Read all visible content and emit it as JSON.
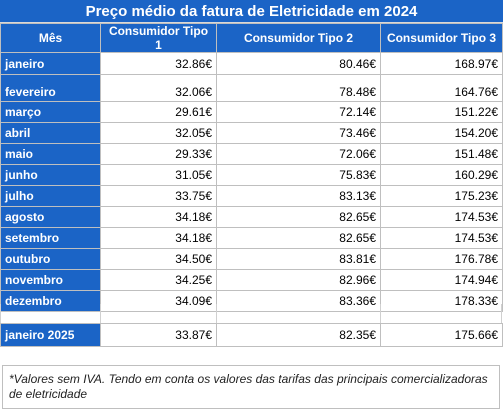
{
  "title": "Preço médio da fatura de Eletricidade em 2024",
  "headers": {
    "month": "Mês",
    "c1": "Consumidor Tipo 1",
    "c2": "Consumidor Tipo 2",
    "c3": "Consumidor Tipo 3"
  },
  "rows": [
    {
      "month": "janeiro",
      "c1": "32.86€",
      "c2": "80.46€",
      "c3": "168.97€"
    },
    {
      "month": "fevereiro",
      "c1": "32.06€",
      "c2": "78.48€",
      "c3": "164.76€"
    },
    {
      "month": "março",
      "c1": "29.61€",
      "c2": "72.14€",
      "c3": "151.22€"
    },
    {
      "month": "abril",
      "c1": "32.05€",
      "c2": "73.46€",
      "c3": "154.20€"
    },
    {
      "month": "maio",
      "c1": "29.33€",
      "c2": "72.06€",
      "c3": "151.48€"
    },
    {
      "month": "junho",
      "c1": "31.05€",
      "c2": "75.83€",
      "c3": "160.29€"
    },
    {
      "month": "julho",
      "c1": "33.75€",
      "c2": "83.13€",
      "c3": "175.23€"
    },
    {
      "month": "agosto",
      "c1": "34.18€",
      "c2": "82.65€",
      "c3": "174.53€"
    },
    {
      "month": "setembro",
      "c1": "34.18€",
      "c2": "82.65€",
      "c3": "174.53€"
    },
    {
      "month": "outubro",
      "c1": "34.50€",
      "c2": "83.81€",
      "c3": "176.78€"
    },
    {
      "month": "novembro",
      "c1": "34.25€",
      "c2": "82.96€",
      "c3": "174.94€"
    },
    {
      "month": "dezembro",
      "c1": "34.09€",
      "c2": "83.36€",
      "c3": "178.33€"
    }
  ],
  "next_year_row": {
    "month": "janeiro 2025",
    "c1": "33.87€",
    "c2": "82.35€",
    "c3": "175.66€"
  },
  "footnote": "*Valores sem IVA. Tendo em conta os valores das tarifas das principais comercializadoras de eletricidade",
  "colors": {
    "header_bg": "#1b64c6",
    "header_text": "#ffffff",
    "grid": "#bfbfbf"
  }
}
